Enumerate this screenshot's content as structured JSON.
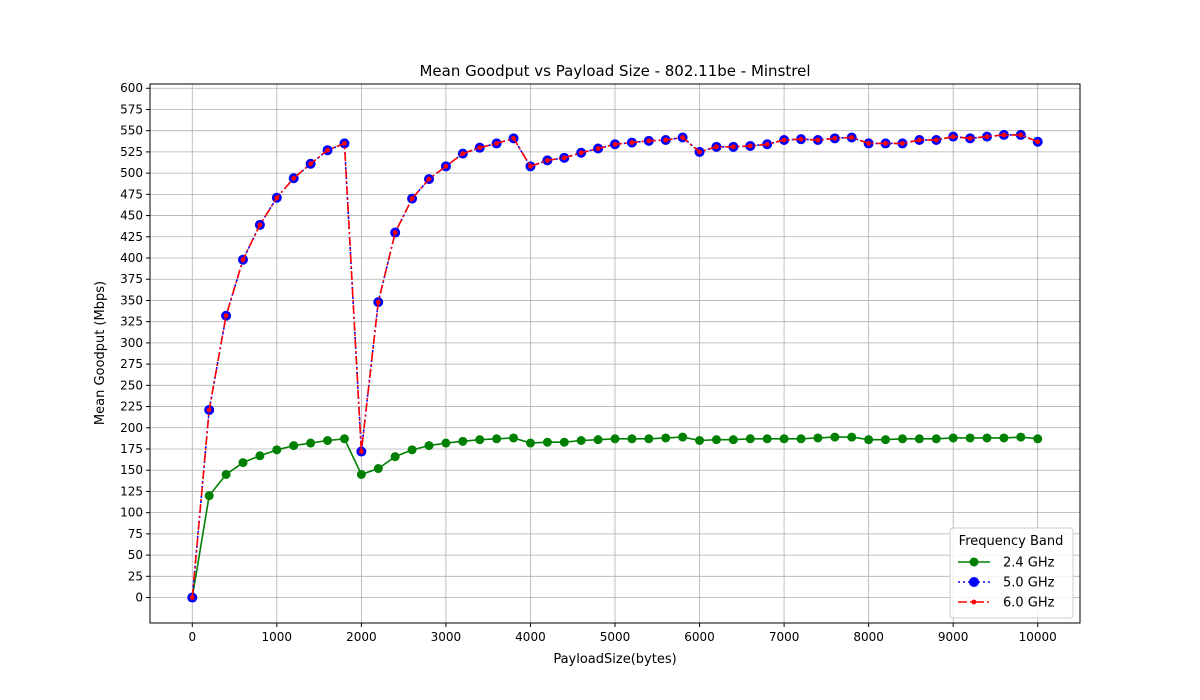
{
  "chart_data": {
    "type": "line",
    "title": "Mean Goodput vs Payload Size - 802.11be - Minstrel",
    "xlabel": "PayloadSize(bytes)",
    "ylabel": "Mean Goodput (Mbps)",
    "xlim": [
      -500,
      10500
    ],
    "ylim": [
      -30,
      605
    ],
    "xticks": [
      0,
      1000,
      2000,
      3000,
      4000,
      5000,
      6000,
      7000,
      8000,
      9000,
      10000
    ],
    "yticks": [
      0,
      25,
      50,
      75,
      100,
      125,
      150,
      175,
      200,
      225,
      250,
      275,
      300,
      325,
      350,
      375,
      400,
      425,
      450,
      475,
      500,
      525,
      550,
      575,
      600
    ],
    "grid": true,
    "legend": {
      "title": "Frequency Band",
      "position": "lower-right"
    },
    "x": [
      0,
      200,
      400,
      600,
      800,
      1000,
      1200,
      1400,
      1600,
      1800,
      2000,
      2200,
      2400,
      2600,
      2800,
      3000,
      3200,
      3400,
      3600,
      3800,
      4000,
      4200,
      4400,
      4600,
      4800,
      5000,
      5200,
      5400,
      5600,
      5800,
      6000,
      6200,
      6400,
      6600,
      6800,
      7000,
      7200,
      7400,
      7600,
      7800,
      8000,
      8200,
      8400,
      8600,
      8800,
      9000,
      9200,
      9400,
      9600,
      9800,
      10000
    ],
    "series": [
      {
        "name": "2.4 GHz",
        "color": "#008000",
        "style": "solid-circle",
        "values": [
          0,
          120,
          145,
          159,
          167,
          174,
          179,
          182,
          185,
          187,
          145,
          152,
          166,
          174,
          179,
          182,
          184,
          186,
          187,
          188,
          182,
          183,
          183,
          185,
          186,
          187,
          187,
          187,
          188,
          189,
          185,
          186,
          186,
          187,
          187,
          187,
          187,
          188,
          189,
          189,
          186,
          186,
          187,
          187,
          187,
          188,
          188,
          188,
          188,
          189,
          187
        ]
      },
      {
        "name": "5.0 GHz",
        "color": "#0000ff",
        "style": "dotted-circle",
        "values": [
          0,
          221,
          332,
          398,
          439,
          471,
          494,
          511,
          527,
          535,
          172,
          348,
          430,
          470,
          493,
          508,
          523,
          530,
          535,
          541,
          508,
          515,
          518,
          524,
          529,
          534,
          536,
          538,
          539,
          542,
          525,
          531,
          531,
          532,
          534,
          539,
          540,
          539,
          541,
          542,
          535,
          535,
          535,
          539,
          539,
          543,
          541,
          543,
          545,
          545,
          537
        ]
      },
      {
        "name": "6.0 GHz",
        "color": "#ff0000",
        "style": "dashdot-dot",
        "values": [
          0,
          221,
          332,
          398,
          439,
          471,
          494,
          511,
          527,
          535,
          172,
          348,
          430,
          470,
          493,
          508,
          523,
          530,
          535,
          541,
          508,
          515,
          518,
          524,
          529,
          534,
          536,
          538,
          539,
          542,
          525,
          531,
          531,
          532,
          534,
          539,
          540,
          539,
          541,
          542,
          535,
          535,
          535,
          539,
          539,
          543,
          541,
          543,
          545,
          545,
          537
        ]
      }
    ]
  }
}
